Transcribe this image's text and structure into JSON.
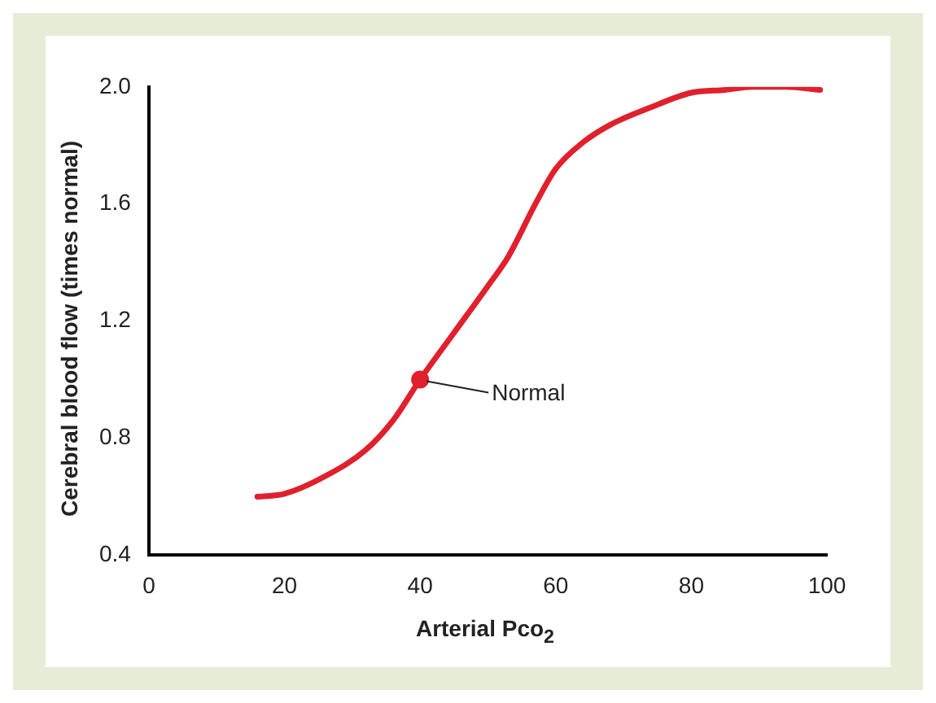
{
  "chart_data": {
    "type": "line",
    "xlabel": "Arterial Pco$_{2}$",
    "ylabel": "Cerebral blood flow (times normal)",
    "series": [
      {
        "color": "#e0202c",
        "x": [
          16,
          20,
          26,
          32,
          36,
          40,
          45,
          50,
          53,
          57,
          60,
          64,
          68,
          74,
          80,
          85,
          89,
          94,
          99
        ],
        "values": [
          0.6,
          0.61,
          0.67,
          0.76,
          0.86,
          1.0,
          1.16,
          1.32,
          1.42,
          1.6,
          1.72,
          1.81,
          1.87,
          1.93,
          1.98,
          1.99,
          2.0,
          2.0,
          1.99
        ],
        "marker": "none"
      },
      {
        "type": "scatter",
        "color": "#e0202c",
        "x": [
          40
        ],
        "values": [
          1.0
        ],
        "marker": "circle"
      }
    ],
    "annotations": [
      {
        "text": "Normal",
        "x": 40,
        "y": 1.0
      }
    ],
    "xlim": [
      0,
      100
    ],
    "xticks": [
      0,
      20,
      40,
      60,
      80,
      100
    ],
    "ylim": [
      0.4,
      2.0
    ],
    "yticks": [
      0.4,
      0.8,
      1.2,
      1.6,
      {
        "value": 2.0,
        "label": "2.0"
      }
    ],
    "grid": false,
    "legend": false
  }
}
